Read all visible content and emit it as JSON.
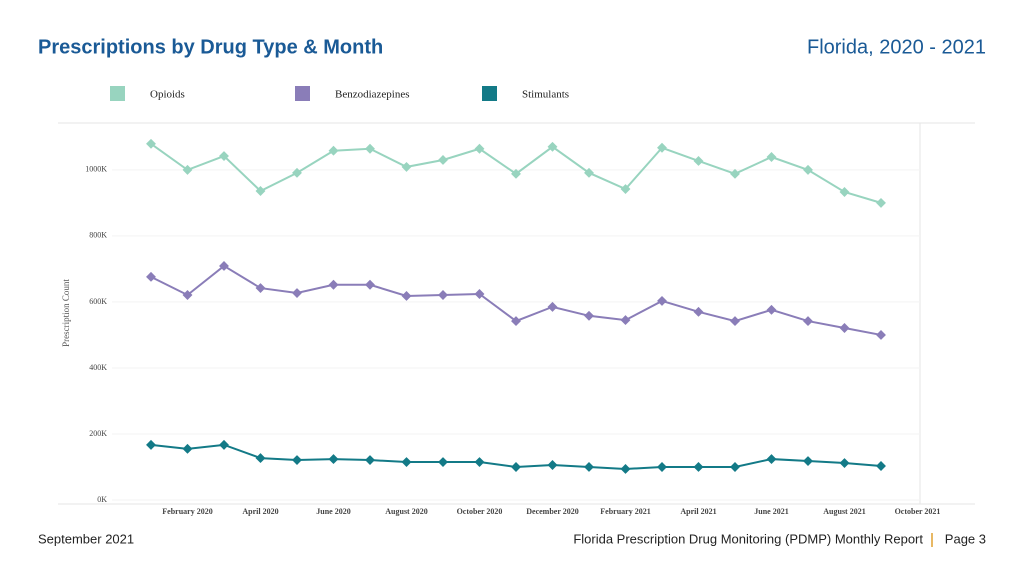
{
  "chart_data": {
    "type": "line",
    "title": "Prescriptions by Drug Type & Month",
    "subtitle": "Florida, 2020 - 2021",
    "y_label": "Prescription Count",
    "categories": [
      null,
      "February 2020",
      null,
      "April 2020",
      null,
      "June 2020",
      null,
      "August 2020",
      null,
      "October 2020",
      null,
      "December 2020",
      null,
      "February 2021",
      null,
      "April 2021",
      null,
      "June 2021",
      null,
      "August 2021",
      null,
      "October 2021"
    ],
    "series": [
      {
        "name": "Opioids",
        "color": "#98d4bf",
        "values": [
          1079,
          1000,
          1042,
          936,
          991,
          1058,
          1064,
          1009,
          1030,
          1064,
          988,
          1070,
          991,
          942,
          1067,
          1027,
          988,
          1039,
          1000,
          933,
          900,
          null
        ]
      },
      {
        "name": "Benzodiazepines",
        "color": "#8a7db8",
        "values": [
          676,
          621,
          709,
          642,
          627,
          652,
          652,
          618,
          621,
          624,
          542,
          585,
          558,
          545,
          603,
          570,
          542,
          576,
          542,
          521,
          500,
          null
        ]
      },
      {
        "name": "Stimulants",
        "color": "#137a87",
        "values": [
          167,
          155,
          167,
          127,
          121,
          124,
          121,
          115,
          115,
          115,
          100,
          106,
          100,
          94,
          100,
          100,
          100,
          124,
          118,
          112,
          103,
          null
        ]
      }
    ],
    "ylim": [
      0,
      1142
    ],
    "yticks": [
      {
        "value": 0,
        "label": "0K"
      },
      {
        "value": 200,
        "label": "200K"
      },
      {
        "value": 400,
        "label": "400K"
      },
      {
        "value": 600,
        "label": "600K"
      },
      {
        "value": 800,
        "label": "800K"
      },
      {
        "value": 1000,
        "label": "1000K"
      }
    ],
    "grid": true,
    "legend": "top"
  },
  "footer": {
    "date": "September 2021",
    "report": "Florida Prescription Drug Monitoring (PDMP) Monthly Report",
    "page": "Page 3"
  }
}
